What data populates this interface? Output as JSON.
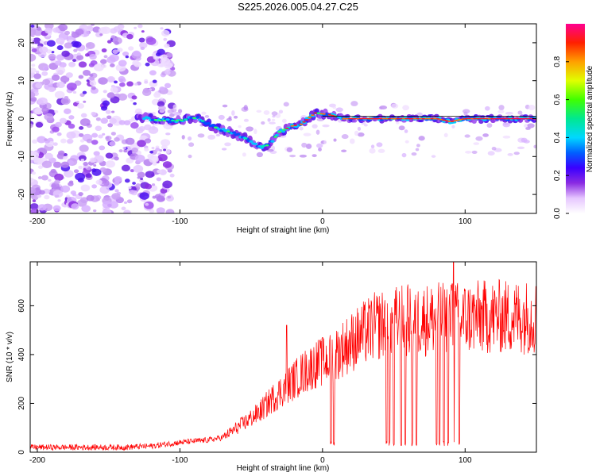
{
  "title": "S225.2026.005.04.27.C25",
  "chart_data": [
    {
      "type": "heatmap",
      "name": "spectrogram",
      "xlabel": "Height of straight line (km)",
      "ylabel": "Frequency (Hz)",
      "xlim": [
        -205,
        150
      ],
      "ylim": [
        -25,
        25
      ],
      "xticks": [
        -200,
        -100,
        0,
        100
      ],
      "yticks": [
        -20,
        -10,
        0,
        10,
        20
      ],
      "xtick_labels": [
        "-200",
        "-100",
        "0",
        "100"
      ],
      "ytick_labels": [
        "-20",
        "-10",
        "0",
        "10",
        "20"
      ],
      "colorbar": {
        "label": "Normalized spectral amplitude",
        "range": [
          0,
          1
        ],
        "ticks": [
          0.0,
          0.2,
          0.4,
          0.6,
          0.8
        ],
        "tick_labels": [
          "0.0",
          "0.2",
          "0.4",
          "0.6",
          "0.8"
        ]
      },
      "ridge": [
        {
          "x": -128,
          "f": 0.5
        },
        {
          "x": -115,
          "f": -0.5
        },
        {
          "x": -100,
          "f": -0.5
        },
        {
          "x": -88,
          "f": 0.3
        },
        {
          "x": -78,
          "f": -2.0
        },
        {
          "x": -65,
          "f": -3.5
        },
        {
          "x": -55,
          "f": -5.0
        },
        {
          "x": -45,
          "f": -7.5
        },
        {
          "x": -38,
          "f": -7.0
        },
        {
          "x": -30,
          "f": -3.5
        },
        {
          "x": -22,
          "f": -2.0
        },
        {
          "x": -15,
          "f": -1.5
        },
        {
          "x": -5,
          "f": 1.5
        },
        {
          "x": 5,
          "f": 1.0
        },
        {
          "x": 15,
          "f": 0.0
        },
        {
          "x": 40,
          "f": 0.0
        },
        {
          "x": 80,
          "f": 0.0
        },
        {
          "x": 90,
          "f": -0.8
        },
        {
          "x": 100,
          "f": 0.0
        },
        {
          "x": 150,
          "f": 0.0
        }
      ]
    },
    {
      "type": "line",
      "name": "snr",
      "xlabel": "Height of straight line (km)",
      "ylabel": "SNR (10 * v/v)",
      "xlim": [
        -205,
        150
      ],
      "ylim": [
        0,
        780
      ],
      "xticks": [
        -200,
        -100,
        0,
        100
      ],
      "yticks": [
        0,
        200,
        400,
        600
      ],
      "xtick_labels": [
        "-200",
        "-100",
        "0",
        "100"
      ],
      "ytick_labels": [
        "0",
        "200",
        "400",
        "600"
      ],
      "color": "#ff0000",
      "trend": [
        {
          "x": -205,
          "y": 20
        },
        {
          "x": -140,
          "y": 20
        },
        {
          "x": -120,
          "y": 25
        },
        {
          "x": -100,
          "y": 40
        },
        {
          "x": -80,
          "y": 50
        },
        {
          "x": -70,
          "y": 60
        },
        {
          "x": -60,
          "y": 100
        },
        {
          "x": -45,
          "y": 160
        },
        {
          "x": -35,
          "y": 220
        },
        {
          "x": -25,
          "y": 270
        },
        {
          "x": -15,
          "y": 320
        },
        {
          "x": -5,
          "y": 360
        },
        {
          "x": 5,
          "y": 380
        },
        {
          "x": 15,
          "y": 430
        },
        {
          "x": 25,
          "y": 470
        },
        {
          "x": 35,
          "y": 510
        },
        {
          "x": 45,
          "y": 530
        },
        {
          "x": 60,
          "y": 540
        },
        {
          "x": 80,
          "y": 545
        },
        {
          "x": 100,
          "y": 550
        },
        {
          "x": 120,
          "y": 555
        },
        {
          "x": 150,
          "y": 555
        }
      ],
      "dropouts": [
        6,
        8,
        45,
        47,
        50,
        55,
        58,
        63,
        66,
        80,
        82,
        85,
        88,
        92,
        96
      ],
      "spikes": [
        {
          "x": -25,
          "y": 520
        },
        {
          "x": 0,
          "y": 470
        },
        {
          "x": 92,
          "y": 780
        },
        {
          "x": 91,
          "y": 690
        }
      ]
    }
  ]
}
